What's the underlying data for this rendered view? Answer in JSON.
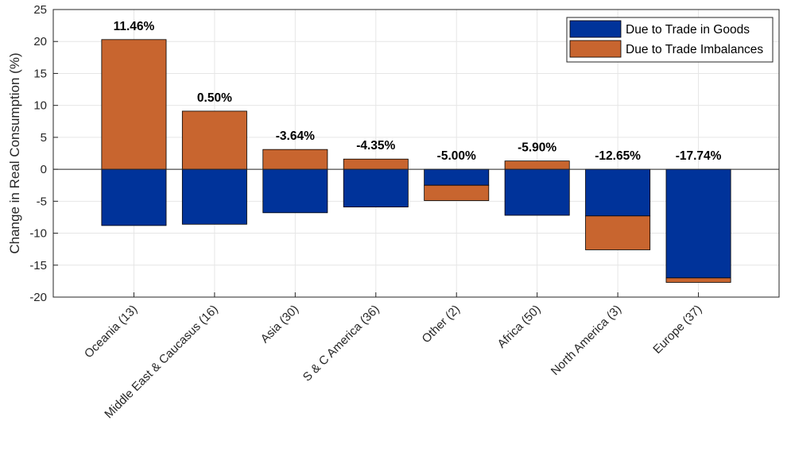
{
  "chart_data": {
    "type": "bar",
    "stacked": true,
    "ylabel": "Change in Real Consumption (%)",
    "xlabel": "",
    "ylim": [
      -20,
      25
    ],
    "yticks": [
      -20,
      -15,
      -10,
      -5,
      0,
      5,
      10,
      15,
      20,
      25
    ],
    "grid": true,
    "legend_position": "top-right",
    "categories": [
      "Oceania (13)",
      "Middle East & Caucasus (16)",
      "Asia (30)",
      "S & C America (36)",
      "Other (2)",
      "Africa (50)",
      "North America (3)",
      "Europe (37)"
    ],
    "totals": [
      "11.46%",
      "0.50%",
      "-3.64%",
      "-4.35%",
      "-5.00%",
      "-5.90%",
      "-12.65%",
      "-17.74%"
    ],
    "series": [
      {
        "name": "Due to Trade in Goods",
        "color": "#00339a",
        "values": [
          -8.8,
          -8.6,
          -6.8,
          -5.9,
          -2.5,
          -7.2,
          -7.3,
          -17.0
        ]
      },
      {
        "name": "Due to Trade Imbalances",
        "color": "#c8652f",
        "values": [
          20.3,
          9.1,
          3.1,
          1.6,
          -2.4,
          1.3,
          -5.3,
          -0.7
        ]
      }
    ]
  }
}
